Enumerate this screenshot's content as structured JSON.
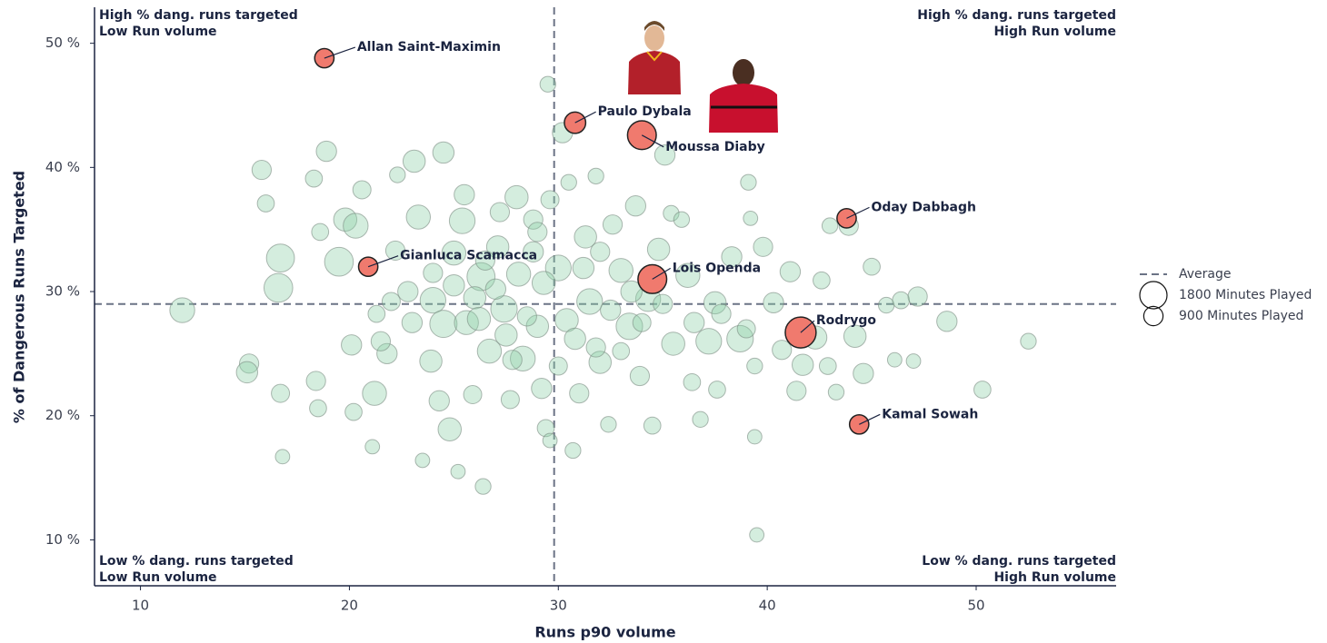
{
  "chart_data": {
    "type": "scatter",
    "x_label": "Runs p90 volume",
    "y_label": "% of Dangerous Runs Targeted",
    "xlim": [
      7.8,
      56.7
    ],
    "ylim": [
      6.3,
      52.9
    ],
    "xticks": [
      10,
      20,
      30,
      40,
      50
    ],
    "yticks": [
      {
        "value": 10,
        "label": "10 %"
      },
      {
        "value": 20,
        "label": "20 %"
      },
      {
        "value": 30,
        "label": "30 %"
      },
      {
        "value": 40,
        "label": "40 %"
      },
      {
        "value": 50,
        "label": "50 %"
      }
    ],
    "averages": {
      "name": "Average",
      "x": 29.8,
      "y": 29.0,
      "color": "#6b7385"
    },
    "size_legend": [
      {
        "value": 1800,
        "label": "1800 Minutes Played"
      },
      {
        "value": 900,
        "label": "900 Minutes Played"
      }
    ],
    "quadrant_labels": {
      "top_left": [
        "High % dang. runs targeted",
        "Low Run volume"
      ],
      "top_right": [
        "High % dang. runs targeted",
        "High Run volume"
      ],
      "bottom_left": [
        "Low % dang. runs targeted",
        "Low Run volume"
      ],
      "bottom_right": [
        "Low % dang. runs targeted",
        "High Run volume"
      ]
    },
    "series": [
      {
        "color": "#8fd0a9",
        "x": [
          12.0,
          15.2,
          15.1,
          15.8,
          16.0,
          16.7,
          16.6,
          16.7,
          16.8,
          18.3,
          18.6,
          18.9,
          18.4,
          18.5,
          19.5,
          19.8,
          20.3,
          20.1,
          20.2,
          20.6,
          21.1,
          21.3,
          21.2,
          21.8,
          22.2,
          22.3,
          22.8,
          23.1,
          23.3,
          23.5,
          23.9,
          24.0,
          24.3,
          24.5,
          24.5,
          24.8,
          25.0,
          25.2,
          25.4,
          25.6,
          25.9,
          26.3,
          26.4,
          26.7,
          27.1,
          27.4,
          27.7,
          28.0,
          28.1,
          28.3,
          28.8,
          29.0,
          29.2,
          29.5,
          29.6,
          29.4,
          29.6,
          30.0,
          30.4,
          30.2,
          30.5,
          30.7,
          31.0,
          31.3,
          31.5,
          31.8,
          32.0,
          32.4,
          32.6,
          33.0,
          33.4,
          33.7,
          33.9,
          34.3,
          34.5,
          34.8,
          35.4,
          35.5,
          35.1,
          35.9,
          36.2,
          36.4,
          36.8,
          37.2,
          37.5,
          37.6,
          38.3,
          38.7,
          39.1,
          39.2,
          39.4,
          39.4,
          39.5,
          39.8,
          40.3,
          40.7,
          41.1,
          41.4,
          41.7,
          42.3,
          42.6,
          42.9,
          43.0,
          43.3,
          43.9,
          44.2,
          44.6,
          45.0,
          45.7,
          46.1,
          46.4,
          47.0,
          47.2,
          48.6,
          50.3,
          52.5,
          26.0,
          27.0,
          28.5,
          29.3,
          31.2,
          32.5,
          33.5,
          27.5,
          26.5,
          25.0,
          24.0,
          23.0,
          30.8,
          32.0,
          34.0,
          35.0,
          36.5,
          28.8,
          27.8,
          26.2,
          22.0,
          21.5,
          30.0,
          31.8,
          33.0,
          29.0,
          25.5,
          27.2,
          37.8,
          39.0
        ],
        "values": [
          28.5,
          24.2,
          23.5,
          39.8,
          37.1,
          32.7,
          30.3,
          21.8,
          16.7,
          39.1,
          34.8,
          41.3,
          22.8,
          20.6,
          32.4,
          35.8,
          35.3,
          25.7,
          20.3,
          38.2,
          17.5,
          28.2,
          21.8,
          25.0,
          33.3,
          39.4,
          30.0,
          40.5,
          36.0,
          16.4,
          24.4,
          29.3,
          21.2,
          41.2,
          27.4,
          18.9,
          33.1,
          15.5,
          35.7,
          27.5,
          21.7,
          31.2,
          14.3,
          25.2,
          33.6,
          28.6,
          21.3,
          37.6,
          31.4,
          24.6,
          35.8,
          27.2,
          22.2,
          46.7,
          37.4,
          19.0,
          18.0,
          31.9,
          27.7,
          42.8,
          38.8,
          17.2,
          21.8,
          34.4,
          29.2,
          39.3,
          24.3,
          19.3,
          35.4,
          31.7,
          27.2,
          36.9,
          23.2,
          29.4,
          19.2,
          33.4,
          36.3,
          25.8,
          41.0,
          35.8,
          31.3,
          22.7,
          19.7,
          26.0,
          29.1,
          22.1,
          32.8,
          26.2,
          38.8,
          35.9,
          24.0,
          18.3,
          10.4,
          33.6,
          29.1,
          25.3,
          31.6,
          22.0,
          24.1,
          26.3,
          30.9,
          24.0,
          35.3,
          21.9,
          35.3,
          26.4,
          23.4,
          32.0,
          28.9,
          24.5,
          29.3,
          24.4,
          29.6,
          27.6,
          22.1,
          26.0,
          29.5,
          30.2,
          28.0,
          30.7,
          31.9,
          28.5,
          30.0,
          26.5,
          32.5,
          30.5,
          31.5,
          27.5,
          26.2,
          33.2,
          27.5,
          29.0,
          27.5,
          33.2,
          24.5,
          27.8,
          29.2,
          26.0,
          24.0,
          25.5,
          25.2,
          34.8,
          37.8,
          36.4,
          28.2,
          27.0
        ],
        "sizes": [
          1500,
          900,
          1100,
          900,
          700,
          1900,
          2000,
          800,
          500,
          700,
          700,
          1000,
          900,
          700,
          2000,
          1300,
          1500,
          1000,
          700,
          800,
          500,
          700,
          1400,
          1000,
          900,
          600,
          1000,
          1200,
          1400,
          500,
          1200,
          1600,
          1000,
          1100,
          1800,
          1300,
          1400,
          500,
          1600,
          1400,
          800,
          1900,
          600,
          1400,
          1200,
          1700,
          800,
          1300,
          1400,
          1500,
          900,
          1200,
          1000,
          600,
          800,
          700,
          500,
          1600,
          1300,
          1000,
          600,
          600,
          900,
          1200,
          1600,
          600,
          1200,
          600,
          900,
          1400,
          1700,
          1000,
          900,
          1500,
          700,
          1200,
          600,
          1300,
          1000,
          600,
          1400,
          700,
          600,
          1600,
          1200,
          700,
          1000,
          1700,
          600,
          500,
          600,
          500,
          500,
          900,
          1000,
          900,
          1000,
          900,
          1100,
          1300,
          700,
          700,
          600,
          600,
          900,
          1200,
          1000,
          700,
          600,
          500,
          700,
          500,
          900,
          1000,
          700,
          600,
          1200,
          1000,
          900,
          1300,
          1100,
          1000,
          1100,
          1200,
          900,
          1100,
          900,
          1000,
          1100,
          900,
          800,
          900,
          1000,
          1000,
          900,
          1300,
          800,
          900,
          800,
          900,
          700,
          900,
          1000,
          900,
          900,
          800
        ]
      },
      {
        "color": "#f07a6e",
        "labels": [
          "Allan Saint-Maximin",
          "Paulo Dybala",
          "Moussa Diaby",
          "Oday Dabbagh",
          "Gianluca Scamacca",
          "Lois Openda",
          "Rodrygo",
          "Kamal Sowah"
        ],
        "x": [
          18.8,
          30.8,
          34.0,
          43.8,
          20.9,
          34.5,
          41.6,
          44.4
        ],
        "values": [
          48.8,
          43.6,
          42.6,
          35.9,
          32.0,
          31.0,
          26.7,
          19.3
        ],
        "sizes": [
          900,
          1100,
          2000,
          900,
          900,
          2000,
          2300,
          900
        ]
      }
    ]
  }
}
